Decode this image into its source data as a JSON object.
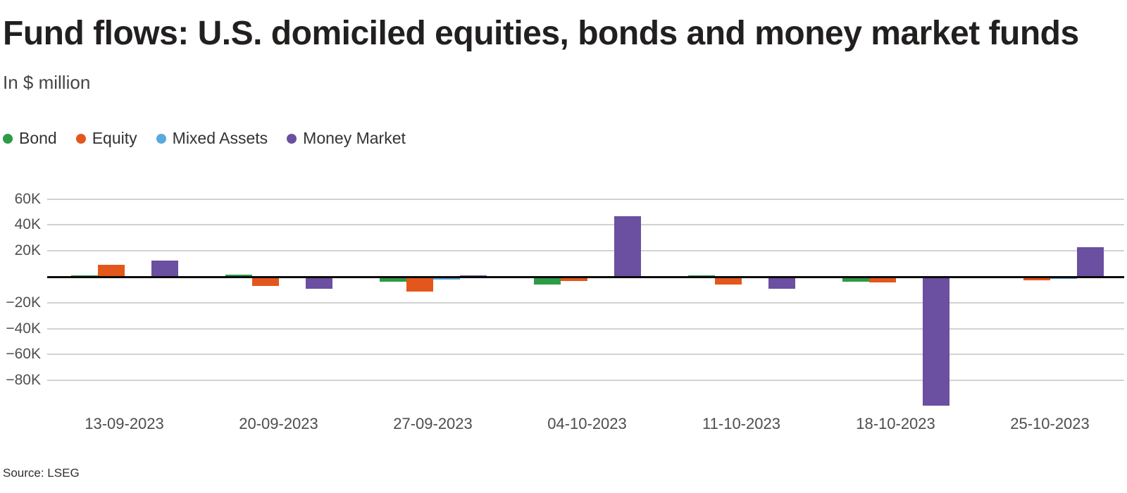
{
  "header": {
    "title": "Fund flows: U.S. domiciled equities, bonds and money market funds",
    "subtitle": "In $ million"
  },
  "footer": {
    "source": "Source: LSEG"
  },
  "chart_data": {
    "type": "bar",
    "title": "Fund flows: U.S. domiciled equities, bonds and money market funds",
    "subtitle": "In $ million",
    "unit": "$ million",
    "grid": true,
    "legend_position": "top-left",
    "categories": [
      "13-09-2023",
      "20-09-2023",
      "27-09-2023",
      "04-10-2023",
      "11-10-2023",
      "18-10-2023",
      "25-10-2023"
    ],
    "series": [
      {
        "name": "Bond",
        "color": "#2d9c46",
        "values": [
          1200,
          1600,
          -3600,
          -6000,
          1300,
          -4000,
          300
        ]
      },
      {
        "name": "Equity",
        "color": "#e4571c",
        "values": [
          9000,
          -7200,
          -11300,
          -3400,
          -5800,
          -4600,
          -2700
        ]
      },
      {
        "name": "Mixed Assets",
        "color": "#58a9dc",
        "values": [
          300,
          -300,
          -2200,
          -1300,
          -300,
          -400,
          -1600
        ]
      },
      {
        "name": "Money Market",
        "color": "#6b4fa1",
        "values": [
          12300,
          -9500,
          1100,
          46600,
          -9200,
          -99500,
          22600
        ]
      }
    ],
    "y_ticks": [
      60000,
      40000,
      20000,
      -20000,
      -40000,
      -60000,
      -80000
    ],
    "y_tick_labels": [
      "60K",
      "40K",
      "20K",
      "−20K",
      "−40K",
      "−60K",
      "−80K"
    ],
    "ylim": [
      -103000,
      66000
    ],
    "xlabel": "",
    "ylabel": "In $ million"
  }
}
